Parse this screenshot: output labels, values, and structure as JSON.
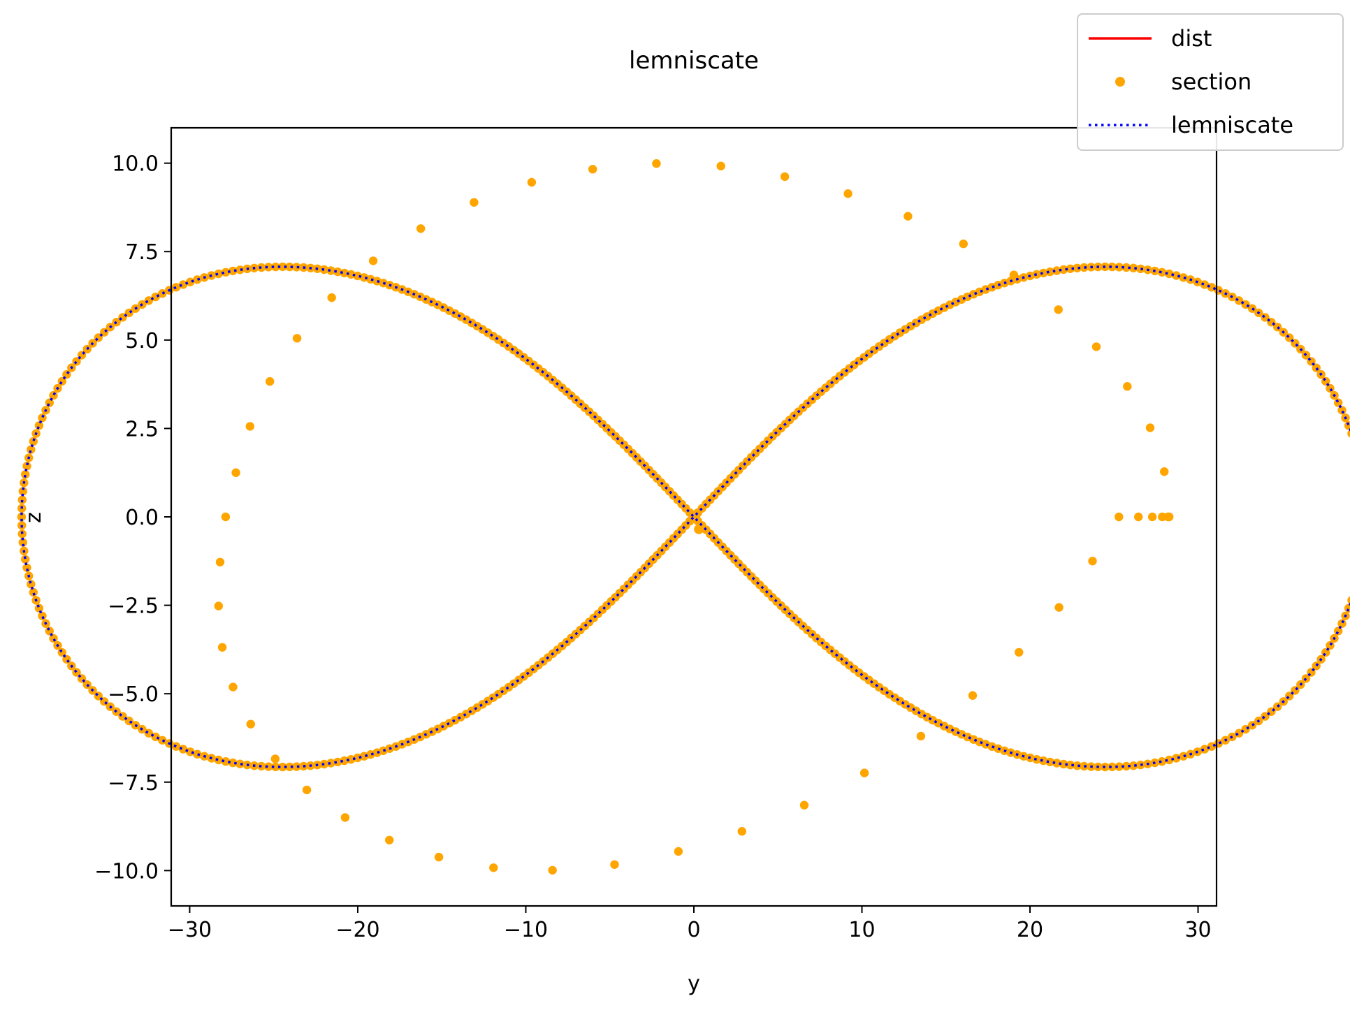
{
  "chart_data": {
    "type": "line",
    "title": "lemniscate",
    "xlabel": "y",
    "ylabel": "z",
    "xlim": [
      -31.1,
      31.1
    ],
    "ylim": [
      -11.0,
      11.0
    ],
    "xticks": [
      -30,
      -20,
      -10,
      0,
      10,
      20,
      30
    ],
    "xtick_labels": [
      "−30",
      "−20",
      "−10",
      "0",
      "10",
      "20",
      "30"
    ],
    "yticks": [
      -10.0,
      -7.5,
      -5.0,
      -2.5,
      0.0,
      2.5,
      5.0,
      7.5,
      10.0
    ],
    "ytick_labels": [
      "−10.0",
      "−7.5",
      "−5.0",
      "−2.5",
      "0.0",
      "2.5",
      "5.0",
      "7.5",
      "10.0"
    ],
    "grid": false,
    "legend_position": "top-right",
    "series": [
      {
        "name": "dist",
        "style": "solid-line",
        "color": "#ff0000",
        "x": [],
        "y": []
      },
      {
        "name": "section",
        "style": "dots",
        "color": "#ffa500",
        "x": [
          28.28,
          27.99,
          27.15,
          25.79,
          23.95,
          21.69,
          19.04,
          16.04,
          12.74,
          9.17,
          5.41,
          1.61,
          -2.23,
          -6.02,
          -9.65,
          -13.08,
          -16.25,
          -19.08,
          -21.55,
          -23.61,
          -25.23,
          -26.41,
          -27.25,
          -27.86,
          -28.19,
          -28.28,
          -28.06,
          -27.42,
          -26.37,
          -24.91,
          -23.03,
          -20.75,
          -18.12,
          -15.17,
          -11.92,
          -8.41,
          -4.72,
          -0.92,
          2.86,
          6.57,
          10.15,
          13.51,
          16.59,
          19.34,
          21.73,
          23.72,
          25.29,
          26.45,
          27.28,
          27.87,
          28.21
        ],
        "y": [
          0.0,
          1.28,
          2.52,
          3.69,
          4.81,
          5.86,
          6.84,
          7.72,
          8.5,
          9.14,
          9.62,
          9.92,
          9.99,
          9.83,
          9.46,
          8.89,
          8.15,
          7.24,
          6.2,
          5.05,
          3.83,
          2.56,
          1.25,
          0.0,
          -1.28,
          -2.52,
          -3.69,
          -4.81,
          -5.86,
          -6.84,
          -7.72,
          -8.5,
          -9.14,
          -9.62,
          -9.92,
          -9.99,
          -9.83,
          -9.46,
          -8.89,
          -8.15,
          -7.24,
          -6.2,
          -5.05,
          -3.83,
          -2.56,
          -1.25,
          0.0,
          0.0,
          0.0,
          0.0,
          0.0
        ]
      },
      {
        "name": "lemniscate",
        "style": "dotted-line",
        "color": "#0000ff",
        "parametric": "y = 40·cos t / (1 + sin² t), z = 20·sin t·cos t / (1 + sin² t), t ∈ [0, 2π]"
      }
    ]
  }
}
